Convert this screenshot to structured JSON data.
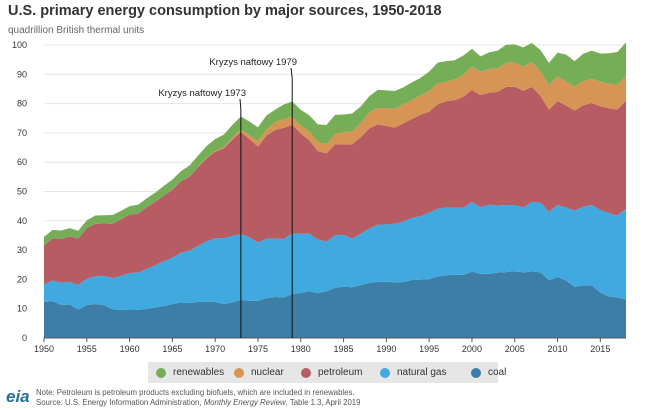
{
  "chart_data": {
    "type": "area",
    "stacked": true,
    "title": "U.S. primary energy consumption by major sources, 1950-2018",
    "ylabel": "quadrillion British thermal units",
    "xlim": [
      1950,
      2018
    ],
    "ylim": [
      0,
      100
    ],
    "x_ticks": [
      1950,
      1955,
      1960,
      1965,
      1970,
      1975,
      1980,
      1985,
      1990,
      1995,
      2000,
      2005,
      2010,
      2015
    ],
    "y_ticks": [
      0,
      10,
      20,
      30,
      40,
      50,
      60,
      70,
      80,
      90,
      100
    ],
    "x": [
      1950,
      1951,
      1952,
      1953,
      1954,
      1955,
      1956,
      1957,
      1958,
      1959,
      1960,
      1961,
      1962,
      1963,
      1964,
      1965,
      1966,
      1967,
      1968,
      1969,
      1970,
      1971,
      1972,
      1973,
      1974,
      1975,
      1976,
      1977,
      1978,
      1979,
      1980,
      1981,
      1982,
      1983,
      1984,
      1985,
      1986,
      1987,
      1988,
      1989,
      1990,
      1991,
      1992,
      1993,
      1994,
      1995,
      1996,
      1997,
      1998,
      1999,
      2000,
      2001,
      2002,
      2003,
      2004,
      2005,
      2006,
      2007,
      2008,
      2009,
      2010,
      2011,
      2012,
      2013,
      2014,
      2015,
      2016,
      2017,
      2018
    ],
    "series": [
      {
        "name": "coal",
        "color": "#3d7ea6",
        "values": [
          12.3,
          12.6,
          11.3,
          11.4,
          9.7,
          11.2,
          11.6,
          11.2,
          9.8,
          9.5,
          9.8,
          9.6,
          9.9,
          10.4,
          10.9,
          11.6,
          12.1,
          11.9,
          12.3,
          12.4,
          12.3,
          11.6,
          12.1,
          13.0,
          12.7,
          12.7,
          13.6,
          14.0,
          13.8,
          15.0,
          15.4,
          15.9,
          15.3,
          15.9,
          17.1,
          17.5,
          17.3,
          18.0,
          18.8,
          19.1,
          19.2,
          18.99,
          19.1,
          19.8,
          19.9,
          20.1,
          21.0,
          21.4,
          21.6,
          21.6,
          22.6,
          21.9,
          21.9,
          22.3,
          22.5,
          22.8,
          22.4,
          22.7,
          22.4,
          19.7,
          20.8,
          19.6,
          17.4,
          18.0,
          17.99,
          15.5,
          14.2,
          13.8,
          13.2
        ]
      },
      {
        "name": "natural gas",
        "color": "#3fa9e0",
        "values": [
          6.0,
          7.0,
          7.6,
          7.8,
          8.4,
          9.0,
          9.4,
          10.0,
          10.7,
          11.7,
          12.4,
          12.7,
          13.7,
          14.4,
          15.3,
          15.8,
          17.0,
          17.9,
          19.1,
          20.6,
          21.8,
          22.5,
          22.7,
          22.5,
          21.7,
          19.9,
          20.3,
          19.9,
          20.0,
          20.7,
          20.2,
          19.7,
          18.3,
          17.0,
          17.95,
          17.7,
          16.6,
          17.6,
          18.5,
          19.6,
          19.6,
          20.0,
          20.7,
          21.2,
          21.7,
          22.7,
          23.1,
          23.2,
          22.8,
          22.9,
          23.8,
          22.8,
          23.6,
          22.9,
          22.9,
          22.6,
          22.2,
          23.7,
          23.8,
          23.4,
          24.6,
          24.9,
          26.1,
          26.8,
          27.4,
          28.2,
          28.4,
          28.0,
          30.9
        ]
      },
      {
        "name": "petroleum",
        "color": "#b85c64",
        "values": [
          13.3,
          14.4,
          14.9,
          15.5,
          15.8,
          17.3,
          18.0,
          17.9,
          18.5,
          19.3,
          19.9,
          20.2,
          21.0,
          21.7,
          22.4,
          23.2,
          24.4,
          25.3,
          26.9,
          28.3,
          29.5,
          30.6,
          32.9,
          34.8,
          33.5,
          32.7,
          35.2,
          37.1,
          37.9,
          37.1,
          34.2,
          31.9,
          30.2,
          30.1,
          31.0,
          30.9,
          32.2,
          32.9,
          34.2,
          34.2,
          33.6,
          32.8,
          33.5,
          33.8,
          34.6,
          34.4,
          35.7,
          36.2,
          36.8,
          37.8,
          38.3,
          38.2,
          38.2,
          38.8,
          40.3,
          40.4,
          39.8,
          39.3,
          36.5,
          34.8,
          35.5,
          34.8,
          34.1,
          34.6,
          34.8,
          35.4,
          35.8,
          36.2,
          36.9
        ]
      },
      {
        "name": "nuclear",
        "color": "#d79555",
        "values": [
          0,
          0,
          0,
          0,
          0,
          0,
          0,
          0,
          0,
          0,
          0,
          0,
          0,
          0,
          0.04,
          0.04,
          0.06,
          0.09,
          0.14,
          0.15,
          0.24,
          0.41,
          0.58,
          0.91,
          1.27,
          1.9,
          2.1,
          2.7,
          3.0,
          2.8,
          2.7,
          3.0,
          3.1,
          3.2,
          3.6,
          4.1,
          4.4,
          4.9,
          5.6,
          5.6,
          6.1,
          6.4,
          6.5,
          6.4,
          6.7,
          7.1,
          7.1,
          6.6,
          7.1,
          7.6,
          7.9,
          8.0,
          8.1,
          7.96,
          8.2,
          8.2,
          8.2,
          8.5,
          8.4,
          8.4,
          8.4,
          8.3,
          8.1,
          8.3,
          8.3,
          8.3,
          8.4,
          8.4,
          8.4
        ]
      },
      {
        "name": "renewables",
        "color": "#76ae57",
        "values": [
          2.9,
          2.9,
          2.9,
          2.8,
          2.7,
          2.7,
          2.8,
          2.8,
          3.0,
          2.9,
          2.9,
          3.0,
          3.1,
          3.1,
          3.3,
          3.4,
          3.4,
          3.7,
          3.8,
          4.1,
          4.1,
          4.3,
          4.4,
          4.4,
          4.7,
          4.7,
          4.8,
          4.2,
          5.0,
          5.1,
          5.4,
          5.5,
          6.0,
          6.5,
          6.5,
          6.1,
          6.1,
          5.6,
          5.4,
          6.2,
          6.0,
          6.1,
          5.8,
          6.1,
          5.9,
          6.6,
          7.1,
          7.1,
          6.5,
          6.5,
          6.1,
          5.2,
          5.7,
          6.1,
          6.2,
          6.2,
          6.6,
          6.5,
          7.2,
          7.6,
          8.1,
          9.1,
          8.8,
          9.3,
          9.6,
          9.7,
          10.4,
          11.2,
          11.5
        ]
      }
    ],
    "legend_position": "bottom",
    "annotations": [
      {
        "text": "Kryzys naftowy 1973",
        "x": 1973
      },
      {
        "text": "Kryzys naftowy 1979",
        "x": 1979
      }
    ]
  },
  "legend": [
    {
      "label": "renewables",
      "color": "#76ae57"
    },
    {
      "label": "nuclear",
      "color": "#d79555"
    },
    {
      "label": "petroleum",
      "color": "#b85c64"
    },
    {
      "label": "natural gas",
      "color": "#3fa9e0"
    },
    {
      "label": "coal",
      "color": "#3d7ea6"
    }
  ],
  "logo_text": "eia",
  "notes": {
    "note": "Note: Petroleum is petroleum products excluding biofuels, which are included in renewables.",
    "source_prefix": "Source: U.S. Energy Information Administration, ",
    "source_title": "Monthly Energy Review",
    "source_suffix": ", Table 1.3, April 2019"
  }
}
